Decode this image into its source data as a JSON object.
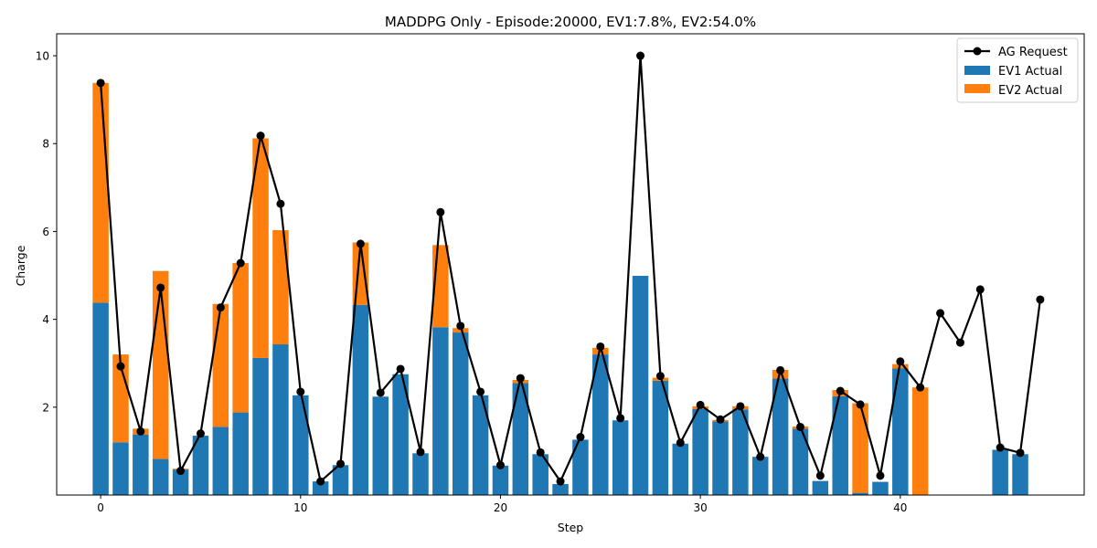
{
  "chart_data": {
    "type": "bar",
    "title": "MADDPG Only - Episode:20000, EV1:7.8%, EV2:54.0%",
    "xlabel": "Step",
    "ylabel": "Charge",
    "xlim": [
      -2.2,
      49.2
    ],
    "ylim": [
      0,
      10.5
    ],
    "x_ticks": [
      0,
      10,
      20,
      30,
      40
    ],
    "y_ticks": [
      2,
      4,
      6,
      8,
      10
    ],
    "grid": false,
    "legend_position": "top-right",
    "colors": {
      "ev1": "#1f77b4",
      "ev2": "#ff7f0e",
      "line": "#000000"
    },
    "x": [
      0,
      1,
      2,
      3,
      4,
      5,
      6,
      7,
      8,
      9,
      10,
      11,
      12,
      13,
      14,
      15,
      16,
      17,
      18,
      19,
      20,
      21,
      22,
      23,
      24,
      25,
      26,
      27,
      28,
      29,
      30,
      31,
      32,
      33,
      34,
      35,
      36,
      37,
      38,
      39,
      40,
      41,
      42,
      43,
      44,
      45,
      46,
      47
    ],
    "series": [
      {
        "name": "AG Request",
        "type": "line",
        "values": [
          9.38,
          2.93,
          1.45,
          4.72,
          0.55,
          1.4,
          4.27,
          5.28,
          8.18,
          6.63,
          2.35,
          0.31,
          0.71,
          5.72,
          2.33,
          2.87,
          0.98,
          6.44,
          3.85,
          2.35,
          0.68,
          2.66,
          0.97,
          0.31,
          1.32,
          3.38,
          1.75,
          10.0,
          2.71,
          1.19,
          2.05,
          1.72,
          2.02,
          0.87,
          2.84,
          1.55,
          0.44,
          2.37,
          2.06,
          0.44,
          3.04,
          2.45,
          4.14,
          3.47,
          4.68,
          1.08,
          0.96,
          4.45
        ]
      },
      {
        "name": "EV1 Actual",
        "type": "bar",
        "values": [
          4.38,
          1.2,
          1.38,
          0.82,
          0.58,
          1.35,
          1.55,
          1.88,
          3.12,
          3.43,
          2.27,
          0.31,
          0.68,
          4.33,
          2.24,
          2.75,
          0.95,
          3.82,
          3.7,
          2.27,
          0.67,
          2.55,
          0.93,
          0.25,
          1.26,
          3.2,
          1.7,
          4.99,
          2.6,
          1.17,
          1.96,
          1.68,
          1.95,
          0.87,
          2.65,
          1.51,
          0.32,
          2.25,
          0.05,
          0.3,
          2.88,
          0,
          0,
          0,
          0,
          1.03,
          0.93,
          0
        ]
      },
      {
        "name": "EV2 Actual",
        "type": "bar",
        "values": [
          5.0,
          2.0,
          0.13,
          4.28,
          0.02,
          0.0,
          2.8,
          3.4,
          5.0,
          2.6,
          0.0,
          0.0,
          0.0,
          1.42,
          0.0,
          0.0,
          0.0,
          1.87,
          0.1,
          0.0,
          0.0,
          0.07,
          0.0,
          0.0,
          0.0,
          0.15,
          0.0,
          0.0,
          0.07,
          0.0,
          0.06,
          0.03,
          0.07,
          0.0,
          0.2,
          0.05,
          0.0,
          0.14,
          2.04,
          0.0,
          0.1,
          2.45,
          0,
          0,
          0,
          0,
          0,
          0
        ]
      }
    ]
  }
}
